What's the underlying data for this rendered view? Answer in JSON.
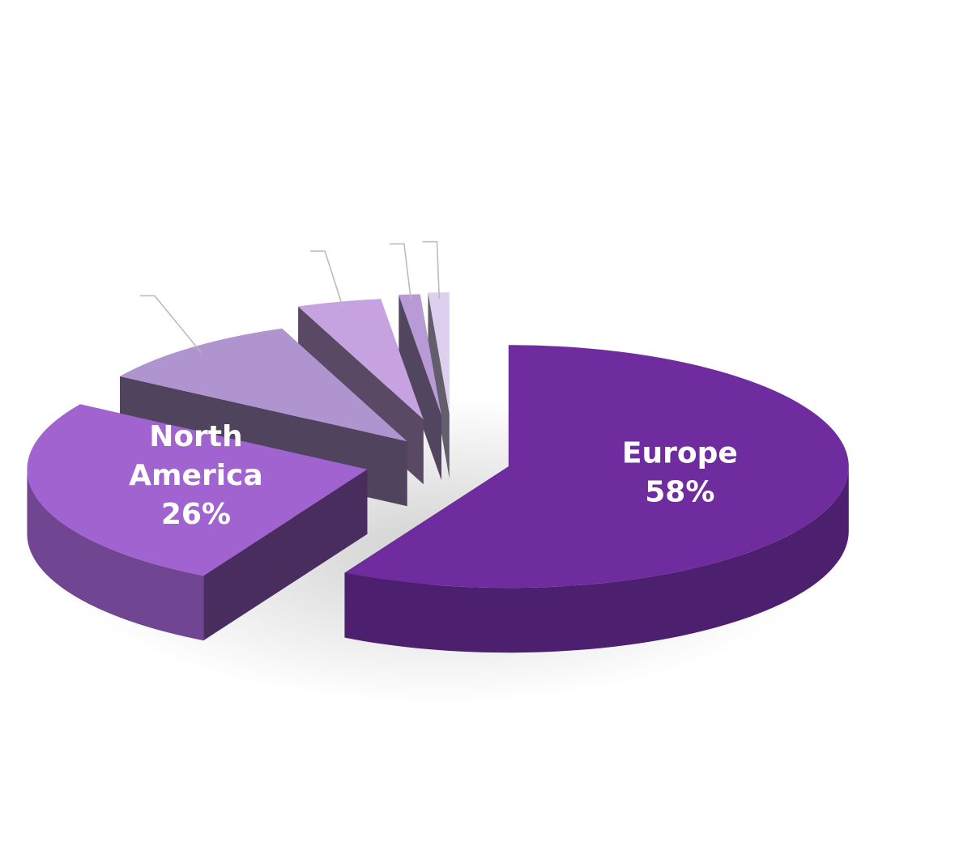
{
  "chart_data": {
    "type": "pie",
    "style": "3d-exploded",
    "title": "",
    "slices": [
      {
        "label": "Europe",
        "value": 58,
        "display": "58%",
        "color": "#6e2c9e",
        "labeled": true
      },
      {
        "label": "North America",
        "value": 26,
        "display": "26%",
        "color": "#a063d0",
        "labeled": true
      },
      {
        "label": "",
        "value": 10,
        "color": "#b094cf",
        "labeled": false
      },
      {
        "label": "",
        "value": 4,
        "color": "#c6a2e0",
        "labeled": false
      },
      {
        "label": "",
        "value": 1,
        "color": "#b79ad6",
        "labeled": false
      },
      {
        "label": "",
        "value": 1,
        "color": "#ddd0ee",
        "labeled": false
      }
    ],
    "legend": "none",
    "data_labels": "inside"
  }
}
